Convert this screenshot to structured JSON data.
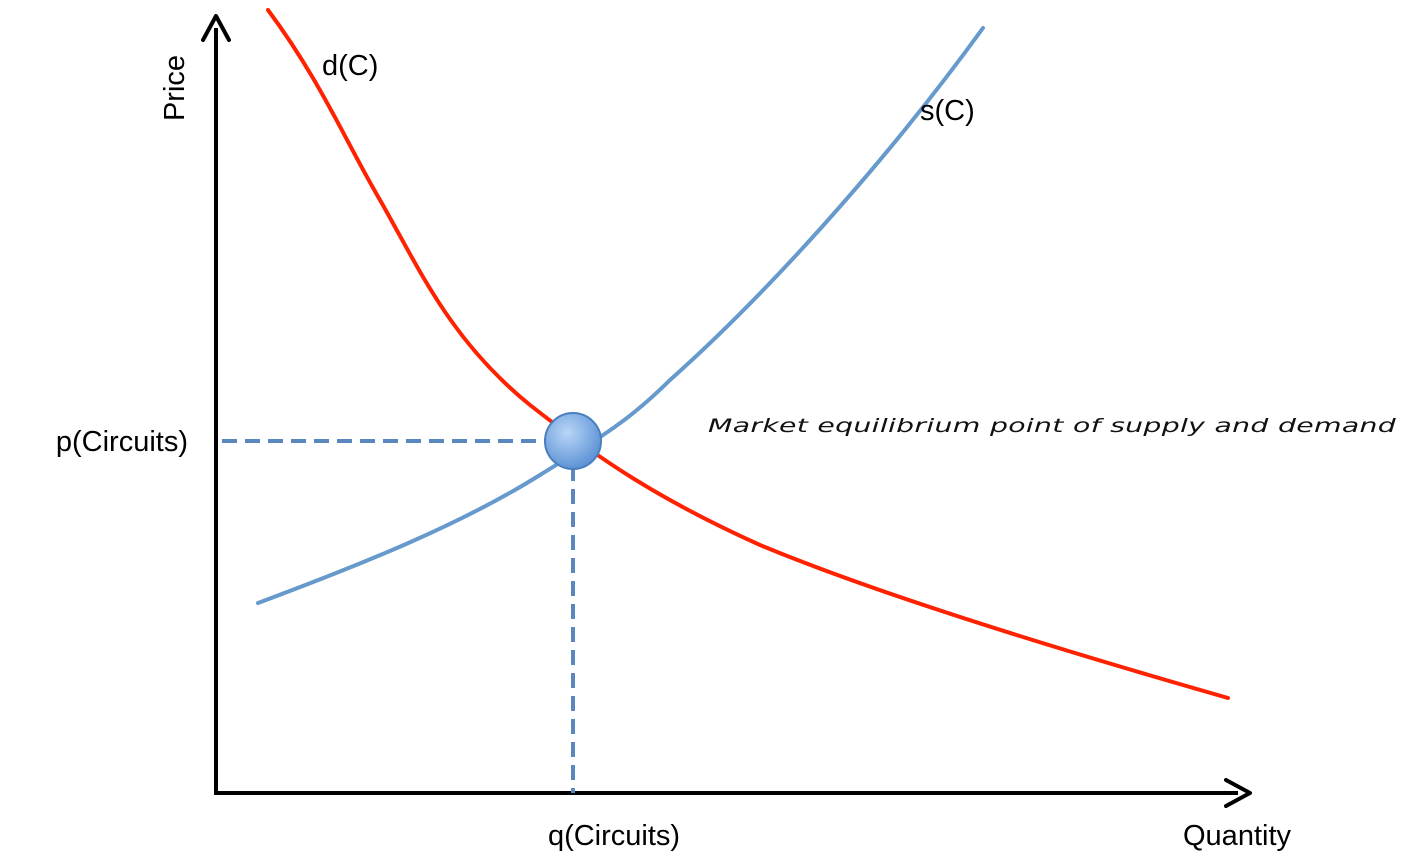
{
  "labels": {
    "y_axis": "Price",
    "x_axis": "Quantity",
    "price_level": "p(Circuits)",
    "quantity_level": "q(Circuits)",
    "demand_curve": "d(C)",
    "supply_curve": "s(C)",
    "annotation": "Market equilibrium point of supply and demand"
  },
  "colors": {
    "axis": "#000000",
    "demand": "#ff2200",
    "supply": "#6699cc",
    "guide": "#5b87bf",
    "point_fill": "#7faee8",
    "point_stroke": "#4a7fbf"
  }
}
